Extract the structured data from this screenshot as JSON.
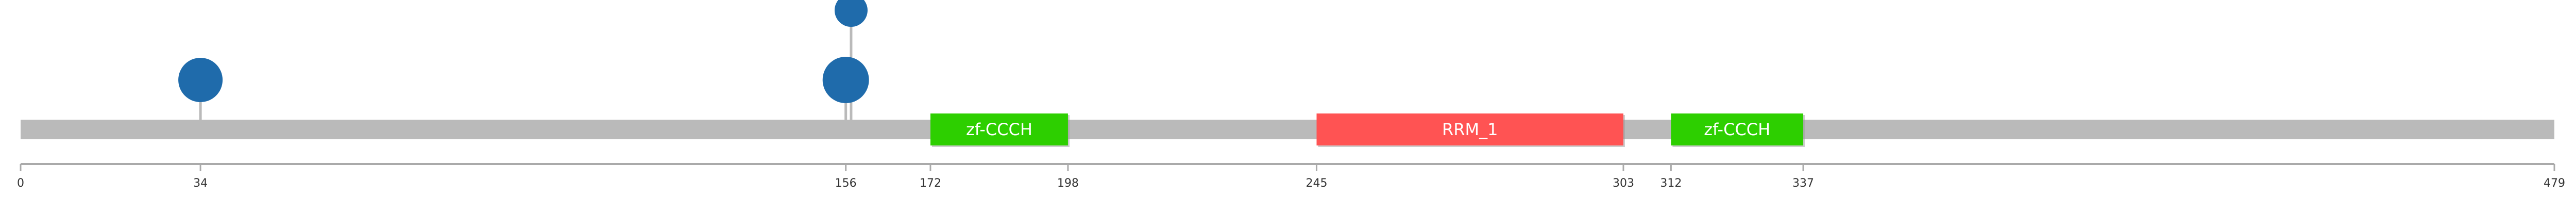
{
  "protein": {
    "length": 479,
    "backbone_color": "#bababa"
  },
  "domains": [
    {
      "name": "zf-CCCH",
      "start": 172,
      "end": 198,
      "color": "#2dcf00"
    },
    {
      "name": "RRM_1",
      "start": 245,
      "end": 303,
      "color": "#ff5353"
    },
    {
      "name": "zf-CCCH",
      "start": 312,
      "end": 337,
      "color": "#2dcf00"
    }
  ],
  "mutations": [
    {
      "position": 34,
      "count": 1
    },
    {
      "position": 156,
      "count": 2
    },
    {
      "position": 157,
      "count": 1
    }
  ],
  "lollipop_color": "#1f6bab",
  "axis": {
    "ticks": [
      "0",
      "34",
      "156",
      "172",
      "198",
      "245",
      "303",
      "312",
      "337",
      "479"
    ]
  }
}
